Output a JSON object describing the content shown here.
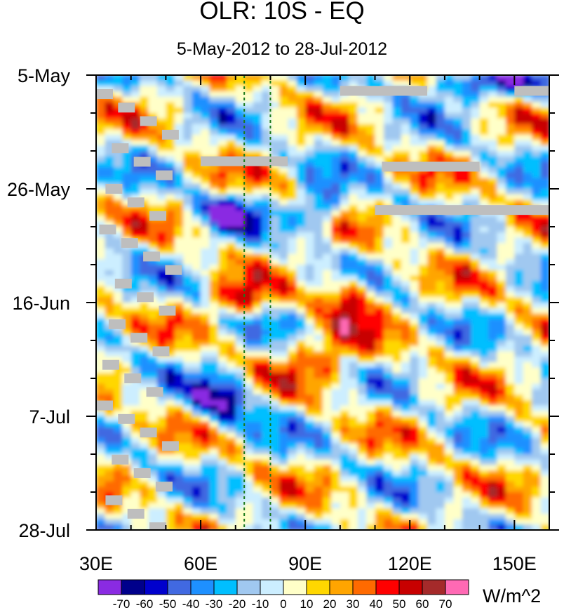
{
  "chart_data": {
    "type": "heatmap",
    "title": "OLR: 10S - EQ",
    "subtitle": "5-May-2012 to 28-Jul-2012",
    "x_range": [
      30,
      160
    ],
    "x_ticks": [
      {
        "value": 30,
        "label": "30E"
      },
      {
        "value": 60,
        "label": "60E"
      },
      {
        "value": 90,
        "label": "90E"
      },
      {
        "value": 120,
        "label": "120E"
      },
      {
        "value": 150,
        "label": "150E"
      }
    ],
    "y_range": [
      "2012-05-05",
      "2012-07-28"
    ],
    "y_ticks": [
      {
        "value": "2012-05-05",
        "label": "5-May"
      },
      {
        "value": "2012-05-26",
        "label": "26-May"
      },
      {
        "value": "2012-06-16",
        "label": "16-Jun"
      },
      {
        "value": "2012-07-07",
        "label": "7-Jul"
      },
      {
        "value": "2012-07-28",
        "label": "28-Jul"
      }
    ],
    "reference_lines_x": [
      72.5,
      80
    ],
    "colorbar": {
      "levels": [
        "-70",
        "-60",
        "-50",
        "-40",
        "-30",
        "-20",
        "-10",
        "0",
        "10",
        "20",
        "30",
        "40",
        "50",
        "60",
        "70"
      ],
      "colors": [
        "#8a2be2",
        "#00008b",
        "#0000cd",
        "#4169e1",
        "#1e90ff",
        "#00bfff",
        "#a0c8f0",
        "#cceeff",
        "#ffffc8",
        "#ffd700",
        "#ffa500",
        "#ff6a00",
        "#ff0000",
        "#c80000",
        "#a52a2a",
        "#ff69b4"
      ],
      "units": "W/m^2"
    },
    "anomaly_features": [
      {
        "lon_start": 95,
        "lon_end": 110,
        "date_start": "2012-06-12",
        "date_end": "2012-06-18",
        "value": 55
      },
      {
        "lon_start": 62,
        "lon_end": 80,
        "date_start": "2012-06-14",
        "date_end": "2012-06-17",
        "value": 45
      },
      {
        "lon_start": 82,
        "lon_end": 110,
        "date_start": "2012-06-22",
        "date_end": "2012-06-30",
        "value": 35
      },
      {
        "lon_start": 60,
        "lon_end": 75,
        "date_start": "2012-05-29",
        "date_end": "2012-06-01",
        "value": -65
      },
      {
        "lon_start": 58,
        "lon_end": 75,
        "date_start": "2012-07-01",
        "date_end": "2012-07-07",
        "value": -65
      },
      {
        "lon_start": 88,
        "lon_end": 100,
        "date_start": "2012-05-28",
        "date_end": "2012-06-01",
        "value": -60
      },
      {
        "lon_start": 120,
        "lon_end": 160,
        "date_start": "2012-05-05",
        "date_end": "2012-05-08",
        "value": -50
      }
    ],
    "missing_bands": [
      {
        "lon_start": 100,
        "lon_end": 125,
        "date_start": "2012-05-07",
        "date_end": "2012-05-08"
      },
      {
        "lon_start": 150,
        "lon_end": 160,
        "date_start": "2012-05-07",
        "date_end": "2012-05-08"
      },
      {
        "lon_start": 60,
        "lon_end": 85,
        "date_start": "2012-05-20",
        "date_end": "2012-05-21"
      },
      {
        "lon_start": 112,
        "lon_end": 140,
        "date_start": "2012-05-21",
        "date_end": "2012-05-22"
      },
      {
        "lon_start": 110,
        "lon_end": 160,
        "date_start": "2012-05-29",
        "date_end": "2012-05-30"
      }
    ]
  }
}
